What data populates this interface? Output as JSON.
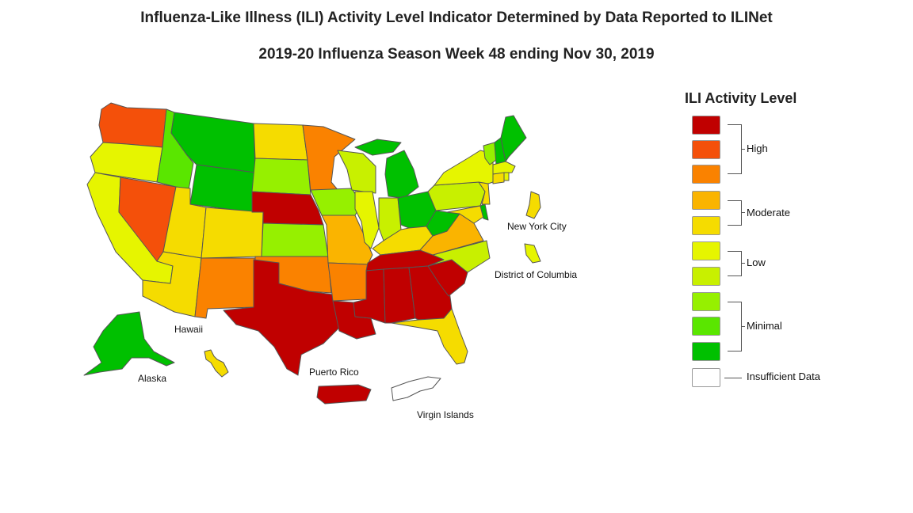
{
  "title": "Influenza-Like Illness (ILI) Activity Level Indicator Determined by Data Reported to ILINet",
  "subtitle": "2019-20 Influenza Season Week 48 ending Nov 30, 2019",
  "legend": {
    "title": "ILI Activity Level",
    "levels": [
      {
        "level": 10,
        "color": "#C00000"
      },
      {
        "level": 9,
        "color": "#F4500A"
      },
      {
        "level": 8,
        "color": "#FA8200"
      },
      {
        "level": 7,
        "color": "#FAB400"
      },
      {
        "level": 6,
        "color": "#F5DC00"
      },
      {
        "level": 5,
        "color": "#E6F500"
      },
      {
        "level": 4,
        "color": "#C8F000"
      },
      {
        "level": 3,
        "color": "#96F000"
      },
      {
        "level": 2,
        "color": "#5AE600"
      },
      {
        "level": 1,
        "color": "#00C000"
      },
      {
        "level": 0,
        "color": "#FFFFFF"
      }
    ],
    "groups": [
      "High",
      "Moderate",
      "Low",
      "Minimal",
      "Insufficient Data"
    ]
  },
  "map_labels": {
    "alaska": "Alaska",
    "hawaii": "Hawaii",
    "puerto_rico": "Puerto Rico",
    "virgin_islands": "Virgin Islands",
    "new_york_city": "New York City",
    "district_of_columbia": "District of Columbia"
  },
  "jurisdictions": {
    "WA": 9,
    "OR": 5,
    "CA": 5,
    "NV": 9,
    "ID": 2,
    "MT": 1,
    "WY": 1,
    "UT": 6,
    "AZ": 6,
    "CO": 6,
    "NM": 8,
    "ND": 6,
    "SD": 3,
    "NE": 10,
    "KS": 3,
    "OK": 8,
    "TX": 10,
    "MN": 8,
    "IA": 3,
    "MO": 7,
    "AR": 8,
    "LA": 10,
    "WI": 4,
    "IL": 5,
    "MI": 1,
    "IN": 4,
    "OH": 1,
    "KY": 6,
    "TN": 10,
    "MS": 10,
    "AL": 10,
    "GA": 10,
    "FL": 6,
    "SC": 10,
    "NC": 4,
    "VA": 7,
    "WV": 1,
    "MD": 6,
    "DE": 1,
    "PA": 4,
    "NJ": 6,
    "NY": 5,
    "CT": 6,
    "RI": 5,
    "MA": 5,
    "VT": 3,
    "NH": 1,
    "ME": 1,
    "AK": 1,
    "HI": 6,
    "PR": 10,
    "VI": 0,
    "NYC": 6,
    "DC": 5
  }
}
